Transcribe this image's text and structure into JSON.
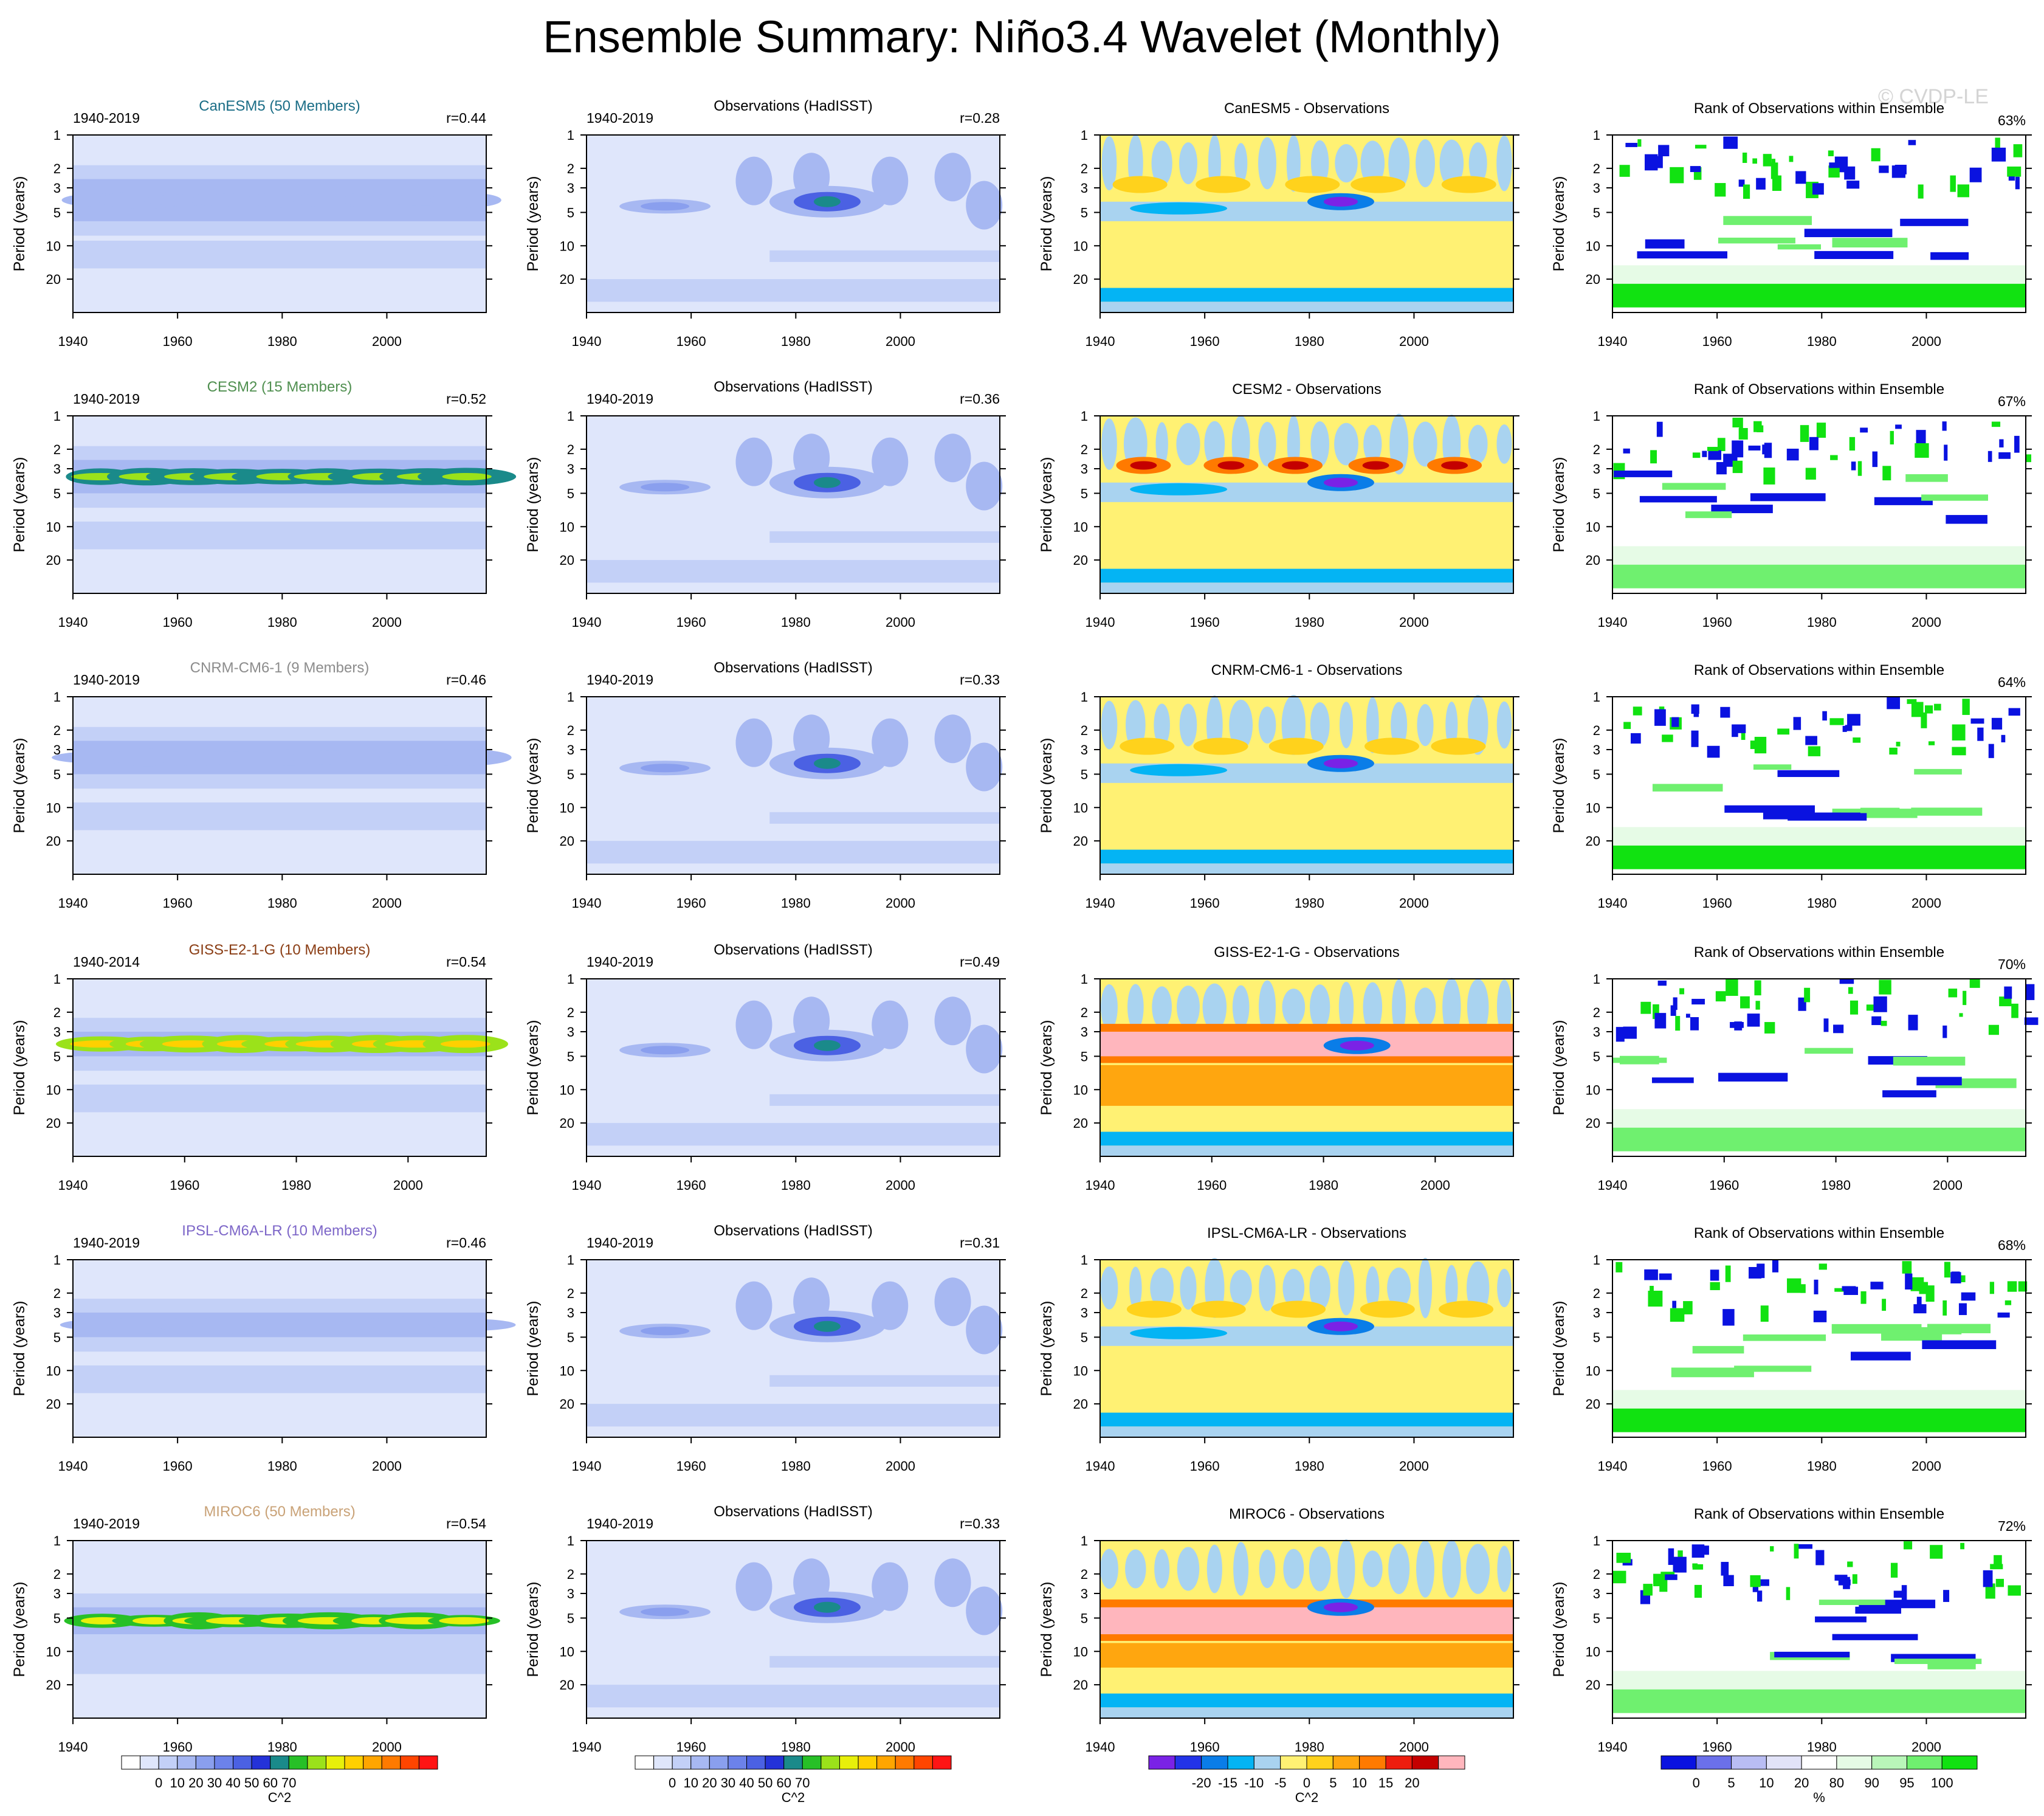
{
  "title": "Ensemble Summary: Niño3.4 Wavelet (Monthly)",
  "watermark": "© CVDP-LE",
  "axis": {
    "ylabel": "Period (years)",
    "yticks": [
      1,
      2,
      3,
      5,
      10,
      20
    ],
    "xticks": [
      1940,
      1960,
      1980,
      2000
    ],
    "period_range": [
      1,
      40
    ]
  },
  "column_titles": {
    "obs": "Observations (HadISST)",
    "rank": "Rank of Observations within Ensemble"
  },
  "rows": [
    {
      "model": "CanESM5 (50 Members)",
      "model_short": "CanESM5",
      "color": "#1a6d86",
      "model_years": "1940-2019",
      "model_r": "r=0.44",
      "obs_years": "1940-2019",
      "obs_r": "r=0.28",
      "diff_title": "CanESM5 - Observations",
      "rank_pct": "63%",
      "xmax": 2019
    },
    {
      "model": "CESM2 (15 Members)",
      "model_short": "CESM2",
      "color": "#4f8f4f",
      "model_years": "1940-2019",
      "model_r": "r=0.52",
      "obs_years": "1940-2019",
      "obs_r": "r=0.36",
      "diff_title": "CESM2 - Observations",
      "rank_pct": "67%",
      "xmax": 2019
    },
    {
      "model": "CNRM-CM6-1 (9 Members)",
      "model_short": "CNRM-CM6-1",
      "color": "#8c8c8c",
      "model_years": "1940-2019",
      "model_r": "r=0.46",
      "obs_years": "1940-2019",
      "obs_r": "r=0.33",
      "diff_title": "CNRM-CM6-1 - Observations",
      "rank_pct": "64%",
      "xmax": 2019
    },
    {
      "model": "GISS-E2-1-G (10 Members)",
      "model_short": "GISS-E2-1-G",
      "color": "#8a3d14",
      "model_years": "1940-2014",
      "model_r": "r=0.54",
      "obs_years": "1940-2019",
      "obs_r": "r=0.49",
      "diff_title": "GISS-E2-1-G - Observations",
      "rank_pct": "70%",
      "xmax": 2014
    },
    {
      "model": "IPSL-CM6A-LR (10 Members)",
      "model_short": "IPSL-CM6A-LR",
      "color": "#7d66c8",
      "model_years": "1940-2019",
      "model_r": "r=0.46",
      "obs_years": "1940-2019",
      "obs_r": "r=0.31",
      "diff_title": "IPSL-CM6A-LR - Observations",
      "rank_pct": "68%",
      "xmax": 2019
    },
    {
      "model": "MIROC6 (50 Members)",
      "model_short": "MIROC6",
      "color": "#c9a277",
      "model_years": "1940-2019",
      "model_r": "r=0.54",
      "obs_years": "1940-2019",
      "obs_r": "r=0.33",
      "diff_title": "MIROC6 - Observations",
      "rank_pct": "72%",
      "xmax": 2019
    }
  ],
  "chart_data": {
    "type": "heatmap",
    "description_axis_x": "year",
    "description_axis_y": "period (years, log scale, inverted)",
    "power_colorbar": {
      "label": "C^2",
      "tick_labels": [
        "0",
        "10",
        "20",
        "30",
        "40",
        "50",
        "60",
        "70"
      ],
      "colors": [
        "#ffffff",
        "#dfe6fb",
        "#c3d0f7",
        "#a7b8f2",
        "#8a9fee",
        "#6c82ea",
        "#4b61e3",
        "#2432d8",
        "#1a8a8a",
        "#27c027",
        "#9be21a",
        "#e8f00a",
        "#ffd000",
        "#ffa500",
        "#ff7a00",
        "#ff4500",
        "#ff1414"
      ]
    },
    "diff_colorbar": {
      "label": "C^2",
      "tick_labels": [
        "-20",
        "-15",
        "-10",
        "-5",
        "0",
        "5",
        "10",
        "15",
        "20"
      ],
      "colors": [
        "#7a22e6",
        "#2233e8",
        "#0a7de8",
        "#04b4f4",
        "#a9d3f0",
        "#fff173",
        "#ffd21c",
        "#ffa60f",
        "#ff7a00",
        "#ee1d0e",
        "#c40000",
        "#ffb6bd"
      ]
    },
    "rank_colorbar": {
      "label": "%",
      "tick_labels": [
        "0",
        "5",
        "10",
        "20",
        "80",
        "90",
        "95",
        "100"
      ],
      "colors": [
        "#0a12e0",
        "#6b70ea",
        "#b9bdf3",
        "#e2e3f8",
        "#ffffff",
        "#e6fbe6",
        "#b9f6b9",
        "#6ff06f",
        "#11e211"
      ]
    },
    "observed_power_peak": {
      "year": 1986,
      "period_years": 4,
      "value": 40
    },
    "panels": [
      {
        "model": "CanESM5",
        "ensemble_mean_peak_power": 15,
        "band_period_years": [
          2.5,
          6
        ]
      },
      {
        "model": "CESM2",
        "ensemble_mean_peak_power": 50,
        "band_period_years": [
          2.5,
          5
        ]
      },
      {
        "model": "CNRM-CM6-1",
        "ensemble_mean_peak_power": 25,
        "band_period_years": [
          2.5,
          5
        ]
      },
      {
        "model": "GISS-E2-1-G",
        "ensemble_mean_peak_power": 62,
        "band_period_years": [
          3,
          5
        ]
      },
      {
        "model": "IPSL-CM6A-LR",
        "ensemble_mean_peak_power": 25,
        "band_period_years": [
          3,
          5
        ]
      },
      {
        "model": "MIROC6",
        "ensemble_mean_peak_power": 55,
        "band_period_years": [
          4,
          7
        ]
      }
    ]
  }
}
